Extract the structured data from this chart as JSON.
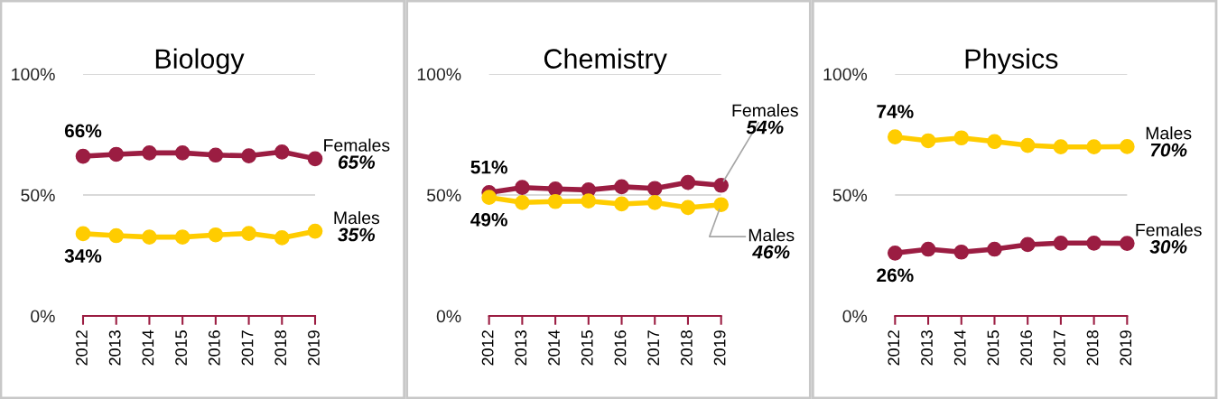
{
  "chart_data": [
    {
      "type": "line",
      "title": "Biology",
      "categories": [
        "2012",
        "2013",
        "2014",
        "2015",
        "2016",
        "2017",
        "2018",
        "2019"
      ],
      "series": [
        {
          "name": "Females",
          "color": "#9b1d42",
          "values": [
            66,
            66.8,
            67.4,
            67.4,
            66.5,
            66.2,
            67.8,
            65
          ],
          "value_labels": [
            "66%",
            null,
            null,
            null,
            null,
            null,
            null,
            "65%"
          ]
        },
        {
          "name": "Males",
          "color": "#ffcc00",
          "values": [
            34,
            33.2,
            32.6,
            32.6,
            33.5,
            34.1,
            32.3,
            35
          ],
          "value_labels": [
            "34%",
            null,
            null,
            null,
            null,
            null,
            null,
            "35%"
          ]
        }
      ],
      "ylim": [
        0,
        100
      ],
      "yticks": [
        {
          "value": 0,
          "label": "0%"
        },
        {
          "value": 50,
          "label": "50%"
        },
        {
          "value": 100,
          "label": "100%"
        }
      ],
      "grid": "y",
      "marker": "circle",
      "line_style": "solid"
    },
    {
      "type": "line",
      "title": "Chemistry",
      "categories": [
        "2012",
        "2013",
        "2014",
        "2015",
        "2016",
        "2017",
        "2018",
        "2019"
      ],
      "series": [
        {
          "name": "Females",
          "color": "#9b1d42",
          "values": [
            51,
            53.1,
            52.5,
            52.1,
            53.4,
            52.7,
            55.2,
            54
          ],
          "value_labels": [
            "51%",
            null,
            null,
            null,
            null,
            null,
            null,
            "54%"
          ]
        },
        {
          "name": "Males",
          "color": "#ffcc00",
          "values": [
            49,
            46.9,
            47.3,
            47.5,
            46.3,
            46.9,
            44.8,
            46
          ],
          "value_labels": [
            "49%",
            null,
            null,
            null,
            null,
            null,
            null,
            "46%"
          ]
        }
      ],
      "ylim": [
        0,
        100
      ],
      "yticks": [
        {
          "value": 0,
          "label": "0%"
        },
        {
          "value": 50,
          "label": "50%"
        },
        {
          "value": 100,
          "label": "100%"
        }
      ],
      "grid": "y",
      "marker": "circle",
      "line_style": "solid"
    },
    {
      "type": "line",
      "title": "Physics",
      "categories": [
        "2012",
        "2013",
        "2014",
        "2015",
        "2016",
        "2017",
        "2018",
        "2019"
      ],
      "series": [
        {
          "name": "Males",
          "color": "#ffcc00",
          "values": [
            74,
            72.4,
            73.6,
            72.1,
            70.5,
            69.9,
            69.9,
            70
          ],
          "value_labels": [
            "74%",
            null,
            null,
            null,
            null,
            null,
            null,
            "70%"
          ]
        },
        {
          "name": "Females",
          "color": "#9b1d42",
          "values": [
            26,
            27.6,
            26.4,
            27.6,
            29.5,
            30.1,
            30.1,
            30
          ],
          "value_labels": [
            "26%",
            null,
            null,
            null,
            null,
            null,
            null,
            "30%"
          ]
        }
      ],
      "ylim": [
        0,
        100
      ],
      "yticks": [
        {
          "value": 0,
          "label": "0%"
        },
        {
          "value": 50,
          "label": "50%"
        },
        {
          "value": 100,
          "label": "100%"
        }
      ],
      "grid": "y",
      "marker": "circle",
      "line_style": "solid"
    }
  ]
}
